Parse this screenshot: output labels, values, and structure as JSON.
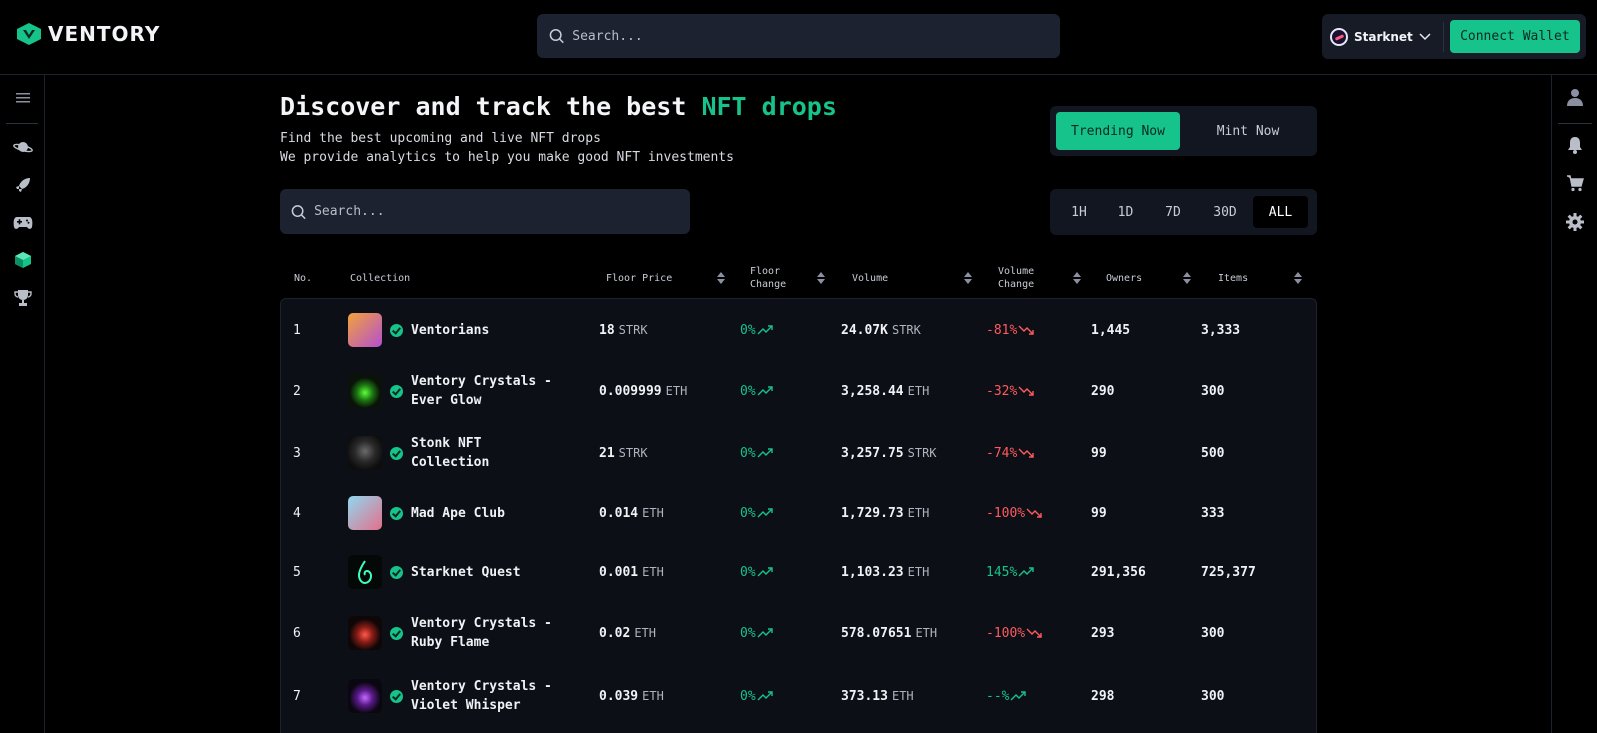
{
  "brand": {
    "name": "VENTORY",
    "accent": "#16c38a"
  },
  "header": {
    "search_placeholder": "Search...",
    "network_label": "Starknet",
    "connect_label": "Connect Wallet"
  },
  "left_nav": [
    "menu-icon",
    "planet-icon",
    "rocket-icon",
    "gamepad-icon",
    "crystal-icon",
    "trophy-icon"
  ],
  "right_nav": [
    "user-icon",
    "bell-icon",
    "cart-icon",
    "gear-icon"
  ],
  "hero": {
    "title_prefix": "Discover and track the best",
    "title_accent": "NFT drops",
    "subtitle_1": "Find the best upcoming and live NFT drops",
    "subtitle_2": "We provide analytics to help you make good NFT investments"
  },
  "tabs": {
    "trending": "Trending Now",
    "mint": "Mint Now",
    "active": "Trending Now"
  },
  "filter": {
    "search_placeholder": "Search...",
    "periods": [
      "1H",
      "1D",
      "7D",
      "30D",
      "ALL"
    ],
    "active_period": "ALL"
  },
  "table": {
    "headers": {
      "no": "No.",
      "collection": "Collection",
      "floor_price": "Floor Price",
      "floor_change_1": "Floor",
      "floor_change_2": "Change",
      "volume": "Volume",
      "volume_change_1": "Volume",
      "volume_change_2": "Change",
      "owners": "Owners",
      "items": "Items"
    },
    "rows": [
      {
        "no": "1",
        "name": "Ventorians",
        "floor": "18",
        "floor_unit": "STRK",
        "floor_change": "0%",
        "floor_dir": "up",
        "volume": "24.07K",
        "volume_unit": "STRK",
        "volume_change": "-81%",
        "volume_dir": "down",
        "owners": "1,445",
        "items": "3,333"
      },
      {
        "no": "2",
        "name": "Ventory Crystals - Ever Glow",
        "floor": "0.009999",
        "floor_unit": "ETH",
        "floor_change": "0%",
        "floor_dir": "up",
        "volume": "3,258.44",
        "volume_unit": "ETH",
        "volume_change": "-32%",
        "volume_dir": "down",
        "owners": "290",
        "items": "300"
      },
      {
        "no": "3",
        "name": "Stonk NFT Collection",
        "floor": "21",
        "floor_unit": "STRK",
        "floor_change": "0%",
        "floor_dir": "up",
        "volume": "3,257.75",
        "volume_unit": "STRK",
        "volume_change": "-74%",
        "volume_dir": "down",
        "owners": "99",
        "items": "500"
      },
      {
        "no": "4",
        "name": "Mad Ape Club",
        "floor": "0.014",
        "floor_unit": "ETH",
        "floor_change": "0%",
        "floor_dir": "up",
        "volume": "1,729.73",
        "volume_unit": "ETH",
        "volume_change": "-100%",
        "volume_dir": "down",
        "owners": "99",
        "items": "333"
      },
      {
        "no": "5",
        "name": "Starknet Quest",
        "floor": "0.001",
        "floor_unit": "ETH",
        "floor_change": "0%",
        "floor_dir": "up",
        "volume": "1,103.23",
        "volume_unit": "ETH",
        "volume_change": "145%",
        "volume_dir": "up",
        "owners": "291,356",
        "items": "725,377"
      },
      {
        "no": "6",
        "name": "Ventory Crystals - Ruby Flame",
        "floor": "0.02",
        "floor_unit": "ETH",
        "floor_change": "0%",
        "floor_dir": "up",
        "volume": "578.07651",
        "volume_unit": "ETH",
        "volume_change": "-100%",
        "volume_dir": "down",
        "owners": "293",
        "items": "300"
      },
      {
        "no": "7",
        "name": "Ventory Crystals - Violet Whisper",
        "floor": "0.039",
        "floor_unit": "ETH",
        "floor_change": "0%",
        "floor_dir": "up",
        "volume": "373.13",
        "volume_unit": "ETH",
        "volume_change": "--%",
        "volume_dir": "up",
        "owners": "298",
        "items": "300"
      }
    ]
  },
  "colors": {
    "positive": "#16c38a",
    "negative": "#ff5a5f",
    "panel": "#1c2230"
  }
}
